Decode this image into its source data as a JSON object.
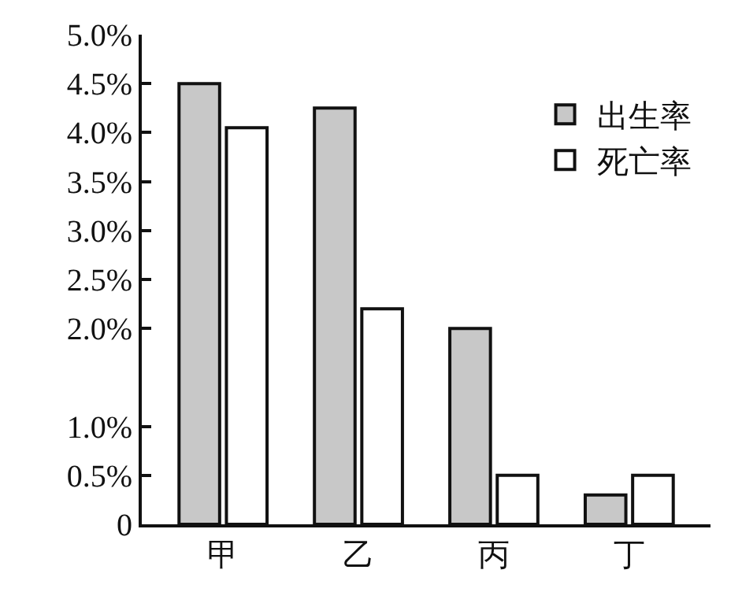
{
  "chart_data": {
    "type": "bar",
    "categories": [
      "甲",
      "乙",
      "丙",
      "丁"
    ],
    "series": [
      {
        "name": "出生率",
        "color": "#c8c8c8",
        "values": [
          4.5,
          4.25,
          2.0,
          0.3
        ]
      },
      {
        "name": "死亡率",
        "color": "#ffffff",
        "values": [
          4.05,
          2.2,
          0.5,
          0.5
        ]
      }
    ],
    "ylim": [
      0,
      5.0
    ],
    "yticks": [
      0,
      {
        "value": 0.5,
        "label": "0.5%"
      },
      {
        "value": 1.0,
        "label": "1.0%"
      },
      {
        "value": 2.0,
        "label": "2.0%"
      },
      {
        "value": 2.5,
        "label": "2.5%"
      },
      {
        "value": 3.0,
        "label": "3.0%"
      },
      {
        "value": 3.5,
        "label": "3.5%"
      },
      {
        "value": 4.0,
        "label": "4.0%"
      },
      {
        "value": 4.5,
        "label": "4.5%"
      },
      {
        "value": 5.0,
        "label": "5.0%"
      }
    ],
    "legend": "top right"
  }
}
